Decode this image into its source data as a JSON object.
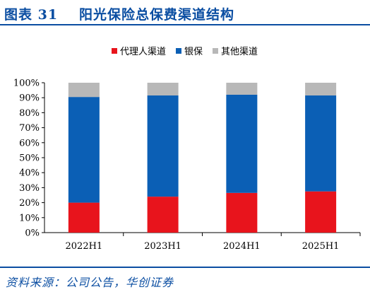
{
  "figure": {
    "label": "图表 31",
    "title": "阳光保险总保费渠道结构",
    "source": "资料来源：公司公告，华创证券"
  },
  "colors": {
    "agent": "#e8141c",
    "bank": "#0b5fb5",
    "other": "#b8b8b8",
    "accent": "#0b4ea2"
  },
  "chart_data": {
    "type": "bar",
    "stacked": true,
    "categories": [
      "2022H1",
      "2023H1",
      "2024H1",
      "2025H1"
    ],
    "series": [
      {
        "name": "代理人渠道",
        "values": [
          20,
          24,
          26.5,
          27.5
        ]
      },
      {
        "name": "银保",
        "values": [
          70.5,
          67.5,
          65.5,
          64
        ]
      },
      {
        "name": "其他渠道",
        "values": [
          9.5,
          8.5,
          8,
          8.5
        ]
      }
    ],
    "ylim": [
      0,
      100
    ],
    "yticks": [
      "0%",
      "10%",
      "20%",
      "30%",
      "40%",
      "50%",
      "60%",
      "70%",
      "80%",
      "90%",
      "100%"
    ],
    "legend_position": "top",
    "grid": false
  }
}
